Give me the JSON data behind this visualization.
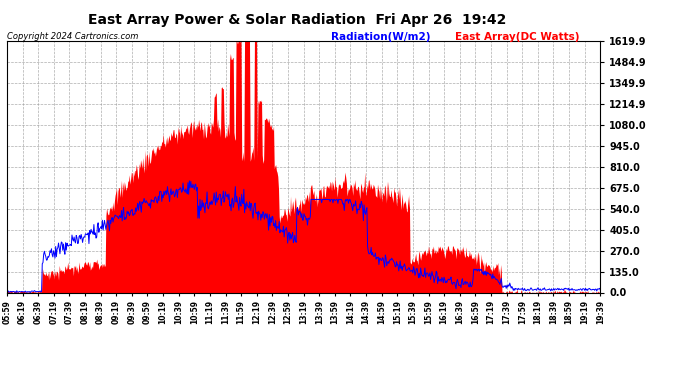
{
  "title": "East Array Power & Solar Radiation  Fri Apr 26  19:42",
  "copyright": "Copyright 2024 Cartronics.com",
  "radiation_label": "Radiation(W/m2)",
  "east_array_label": "East Array(DC Watts)",
  "radiation_color": "blue",
  "east_array_color": "red",
  "background_color": "white",
  "grid_color": "#aaaaaa",
  "yticks": [
    0.0,
    135.0,
    270.0,
    405.0,
    540.0,
    675.0,
    810.0,
    945.0,
    1080.0,
    1214.9,
    1349.9,
    1484.9,
    1619.9
  ],
  "ymax": 1619.9,
  "ymin": 0.0,
  "xtick_labels": [
    "05:59",
    "06:19",
    "06:39",
    "07:19",
    "07:39",
    "08:19",
    "08:39",
    "09:19",
    "09:39",
    "09:59",
    "10:19",
    "10:39",
    "10:59",
    "11:19",
    "11:39",
    "11:59",
    "12:19",
    "12:39",
    "12:59",
    "13:19",
    "13:39",
    "13:59",
    "14:19",
    "14:39",
    "14:59",
    "15:19",
    "15:39",
    "15:59",
    "16:19",
    "16:39",
    "16:59",
    "17:19",
    "17:39",
    "17:59",
    "18:19",
    "18:39",
    "18:59",
    "19:19",
    "19:39"
  ]
}
